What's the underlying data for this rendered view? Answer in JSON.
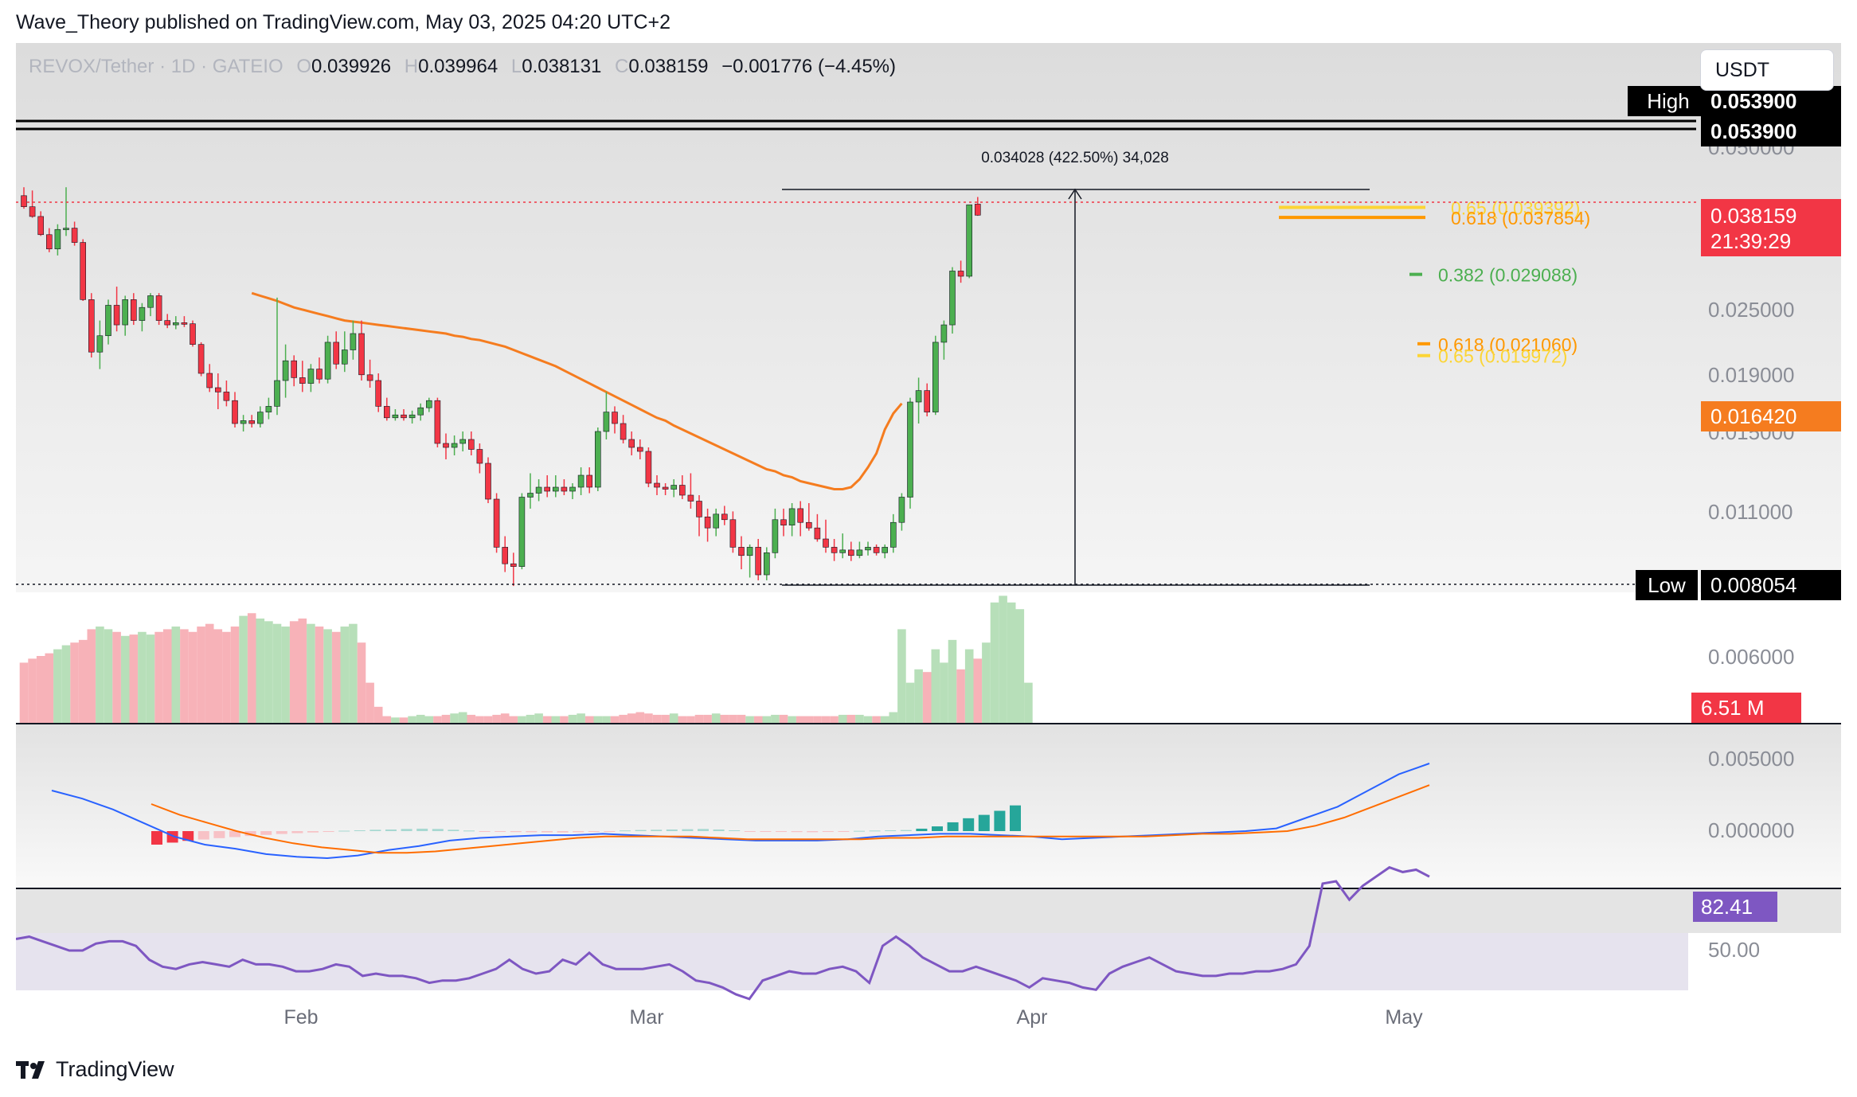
{
  "header": {
    "publisher_line": "Wave_Theory published on TradingView.com, May 03, 2025 04:20 UTC+2"
  },
  "legend": {
    "symbol": "REVOX/Tether · 1D · GATEIO",
    "open_label": "O",
    "open": "0.039926",
    "high_label": "H",
    "high": "0.039964",
    "low_label": "L",
    "low": "0.038131",
    "close_label": "C",
    "close": "0.038159",
    "change": "−0.001776 (−4.45%)"
  },
  "currency": {
    "label": "USDT"
  },
  "footer": {
    "brand": "TradingView"
  },
  "colors": {
    "up": "#4caf50",
    "down": "#f23645",
    "ema": "#f57c1f",
    "macd": "#2962ff",
    "signal": "#ff6d00",
    "rsi": "#7e57c2",
    "fib_gold": "#fcd535",
    "fib_orange": "#ff9800",
    "fib_green": "#4caf50"
  },
  "chart_data": {
    "type": "candlestick",
    "x_ticks": [
      "Feb",
      "Mar",
      "Apr",
      "May"
    ],
    "y_ticks": [
      "0.050000",
      "0.025000",
      "0.019000",
      "0.015000",
      "0.011000",
      "0.006000",
      "0.005000",
      "0.000000"
    ],
    "price_scale": {
      "high_label": "High",
      "high_value": "0.053900",
      "high_value_2": "0.053900",
      "low_label": "Low",
      "low_value": "0.008054",
      "last_price": "0.038159",
      "countdown": "21:39:29",
      "ema_value": "0.016420",
      "volume_value": "6.51 M",
      "rsi_value": "82.41",
      "rsi_tick": "50.00"
    },
    "measure_label": "0.034028 (422.50%) 34,028",
    "fib_levels": [
      {
        "label": "0.65 (0.039392)",
        "value": 0.039392,
        "color": "#fcd535"
      },
      {
        "label": "0.618 (0.037854)",
        "value": 0.037854,
        "color": "#ff9800"
      },
      {
        "label": "0.382 (0.029088)",
        "value": 0.029088,
        "color": "#4caf50"
      },
      {
        "label": "0.618 (0.021060)",
        "value": 0.02106,
        "color": "#ff9800"
      },
      {
        "label": "0.65 (0.019972)",
        "value": 0.019972,
        "color": "#fcd535"
      }
    ],
    "candles": [
      [
        0.0412,
        0.0425,
        0.0392,
        0.0395
      ],
      [
        0.0395,
        0.042,
        0.0378,
        0.038
      ],
      [
        0.038,
        0.0388,
        0.035,
        0.0352
      ],
      [
        0.0352,
        0.0362,
        0.0325,
        0.033
      ],
      [
        0.033,
        0.0368,
        0.032,
        0.036
      ],
      [
        0.036,
        0.0425,
        0.035,
        0.0362
      ],
      [
        0.0362,
        0.0372,
        0.0335,
        0.034
      ],
      [
        0.034,
        0.0345,
        0.025,
        0.0252
      ],
      [
        0.0252,
        0.0262,
        0.0198,
        0.0203
      ],
      [
        0.0203,
        0.0232,
        0.0188,
        0.0218
      ],
      [
        0.0218,
        0.0252,
        0.021,
        0.0246
      ],
      [
        0.0246,
        0.0272,
        0.0222,
        0.0228
      ],
      [
        0.0228,
        0.0258,
        0.0218,
        0.0252
      ],
      [
        0.0252,
        0.0262,
        0.0228,
        0.0232
      ],
      [
        0.0232,
        0.0248,
        0.0222,
        0.0244
      ],
      [
        0.0244,
        0.0262,
        0.0236,
        0.0258
      ],
      [
        0.0258,
        0.0262,
        0.0228,
        0.0232
      ],
      [
        0.0232,
        0.0238,
        0.0225,
        0.0228
      ],
      [
        0.0228,
        0.0236,
        0.0224,
        0.023
      ],
      [
        0.023,
        0.0236,
        0.0226,
        0.0229
      ],
      [
        0.0229,
        0.0232,
        0.0208,
        0.021
      ],
      [
        0.021,
        0.0212,
        0.0183,
        0.0185
      ],
      [
        0.0185,
        0.0192,
        0.0172,
        0.0175
      ],
      [
        0.0175,
        0.0185,
        0.016,
        0.0172
      ],
      [
        0.0172,
        0.018,
        0.0162,
        0.0166
      ],
      [
        0.0166,
        0.0172,
        0.0148,
        0.015
      ],
      [
        0.015,
        0.0156,
        0.0146,
        0.0152
      ],
      [
        0.0152,
        0.0156,
        0.0148,
        0.015
      ],
      [
        0.015,
        0.0162,
        0.0148,
        0.0158
      ],
      [
        0.0158,
        0.0168,
        0.0153,
        0.0162
      ],
      [
        0.0162,
        0.0255,
        0.0156,
        0.018
      ],
      [
        0.018,
        0.021,
        0.0168,
        0.0195
      ],
      [
        0.0195,
        0.02,
        0.0176,
        0.0182
      ],
      [
        0.0182,
        0.0195,
        0.0172,
        0.0178
      ],
      [
        0.0178,
        0.0192,
        0.0172,
        0.0188
      ],
      [
        0.0188,
        0.0198,
        0.0178,
        0.0181
      ],
      [
        0.0181,
        0.0218,
        0.0178,
        0.0212
      ],
      [
        0.0212,
        0.0222,
        0.0188,
        0.0192
      ],
      [
        0.0192,
        0.0222,
        0.0186,
        0.0205
      ],
      [
        0.0205,
        0.0232,
        0.0196,
        0.022
      ],
      [
        0.022,
        0.0232,
        0.018,
        0.0184
      ],
      [
        0.0184,
        0.0196,
        0.0175,
        0.018
      ],
      [
        0.018,
        0.0185,
        0.0158,
        0.0162
      ],
      [
        0.0162,
        0.0168,
        0.0152,
        0.0154
      ],
      [
        0.0154,
        0.016,
        0.0152,
        0.0156
      ],
      [
        0.0156,
        0.016,
        0.0152,
        0.0154
      ],
      [
        0.0154,
        0.0159,
        0.015,
        0.0156
      ],
      [
        0.0156,
        0.0164,
        0.0152,
        0.0161
      ],
      [
        0.0161,
        0.0168,
        0.0158,
        0.0166
      ],
      [
        0.0166,
        0.0168,
        0.0138,
        0.014
      ],
      [
        0.014,
        0.0145,
        0.0132,
        0.0138
      ],
      [
        0.0138,
        0.0144,
        0.0134,
        0.014
      ],
      [
        0.014,
        0.0146,
        0.0136,
        0.0142
      ],
      [
        0.0142,
        0.0146,
        0.0134,
        0.0137
      ],
      [
        0.0137,
        0.014,
        0.0125,
        0.013
      ],
      [
        0.013,
        0.0133,
        0.011,
        0.0112
      ],
      [
        0.0112,
        0.0115,
        0.0092,
        0.0094
      ],
      [
        0.0094,
        0.0098,
        0.0085,
        0.0088
      ],
      [
        0.0088,
        0.0092,
        0.008,
        0.0087
      ],
      [
        0.0087,
        0.0115,
        0.0086,
        0.0113
      ],
      [
        0.0113,
        0.0125,
        0.0108,
        0.0115
      ],
      [
        0.0115,
        0.0122,
        0.0111,
        0.0118
      ],
      [
        0.0118,
        0.0124,
        0.0113,
        0.0116
      ],
      [
        0.0116,
        0.0124,
        0.0113,
        0.0118
      ],
      [
        0.0118,
        0.0122,
        0.0114,
        0.0116
      ],
      [
        0.0116,
        0.012,
        0.0112,
        0.0118
      ],
      [
        0.0118,
        0.0128,
        0.0114,
        0.0124
      ],
      [
        0.0124,
        0.0128,
        0.0115,
        0.0118
      ],
      [
        0.0118,
        0.0148,
        0.0116,
        0.0146
      ],
      [
        0.0146,
        0.0172,
        0.0142,
        0.0158
      ],
      [
        0.0158,
        0.0162,
        0.0145,
        0.015
      ],
      [
        0.015,
        0.0156,
        0.014,
        0.0142
      ],
      [
        0.0142,
        0.0146,
        0.0134,
        0.0138
      ],
      [
        0.0138,
        0.0142,
        0.0132,
        0.0136
      ],
      [
        0.0136,
        0.0138,
        0.0118,
        0.012
      ],
      [
        0.012,
        0.0124,
        0.0114,
        0.0118
      ],
      [
        0.0118,
        0.012,
        0.0114,
        0.0117
      ],
      [
        0.0117,
        0.0122,
        0.0113,
        0.0119
      ],
      [
        0.0119,
        0.0124,
        0.0112,
        0.0114
      ],
      [
        0.0114,
        0.0125,
        0.0108,
        0.0111
      ],
      [
        0.0111,
        0.0114,
        0.0098,
        0.0105
      ],
      [
        0.0105,
        0.0108,
        0.0096,
        0.0101
      ],
      [
        0.0101,
        0.0108,
        0.0098,
        0.0106
      ],
      [
        0.0106,
        0.0109,
        0.0102,
        0.0104
      ],
      [
        0.0104,
        0.0107,
        0.0092,
        0.0094
      ],
      [
        0.0094,
        0.0098,
        0.0086,
        0.0091
      ],
      [
        0.0091,
        0.0095,
        0.0083,
        0.0094
      ],
      [
        0.0094,
        0.0097,
        0.0082,
        0.0084
      ],
      [
        0.0084,
        0.0094,
        0.0082,
        0.0092
      ],
      [
        0.0092,
        0.0108,
        0.009,
        0.0104
      ],
      [
        0.0104,
        0.0108,
        0.0098,
        0.0102
      ],
      [
        0.0102,
        0.011,
        0.0098,
        0.0108
      ],
      [
        0.0108,
        0.0111,
        0.0098,
        0.0103
      ],
      [
        0.0103,
        0.011,
        0.01,
        0.0101
      ],
      [
        0.0101,
        0.0106,
        0.0096,
        0.0097
      ],
      [
        0.0097,
        0.0104,
        0.0092,
        0.0094
      ],
      [
        0.0094,
        0.0097,
        0.0089,
        0.0092
      ],
      [
        0.0092,
        0.0099,
        0.009,
        0.0093
      ],
      [
        0.0093,
        0.0096,
        0.0089,
        0.0091
      ],
      [
        0.0091,
        0.0096,
        0.009,
        0.0093
      ],
      [
        0.0093,
        0.0096,
        0.0091,
        0.0094
      ],
      [
        0.0094,
        0.0095,
        0.0091,
        0.0092
      ],
      [
        0.0092,
        0.0095,
        0.009,
        0.0094
      ],
      [
        0.0094,
        0.0106,
        0.0092,
        0.0103
      ],
      [
        0.0103,
        0.0115,
        0.01,
        0.0113
      ],
      [
        0.0113,
        0.0168,
        0.0108,
        0.0165
      ],
      [
        0.0165,
        0.0182,
        0.015,
        0.0173
      ],
      [
        0.0173,
        0.0178,
        0.0155,
        0.0158
      ],
      [
        0.0158,
        0.0218,
        0.0156,
        0.0212
      ],
      [
        0.0212,
        0.0232,
        0.0196,
        0.0228
      ],
      [
        0.0228,
        0.0302,
        0.022,
        0.0296
      ],
      [
        0.0296,
        0.0312,
        0.0278,
        0.0288
      ],
      [
        0.0288,
        0.0398,
        0.0285,
        0.0398
      ],
      [
        0.0399,
        0.041,
        0.0381,
        0.0382
      ]
    ],
    "ema": [
      0.0262,
      0.0258,
      0.0254,
      0.025,
      0.0247,
      0.0244,
      0.0242,
      0.024,
      0.0238,
      0.0236,
      0.0234,
      0.0232,
      0.0231,
      0.023,
      0.0229,
      0.0228,
      0.0227,
      0.0226,
      0.0225,
      0.0224,
      0.0223,
      0.0222,
      0.0221,
      0.022,
      0.0218,
      0.0217,
      0.0215,
      0.0214,
      0.0212,
      0.021,
      0.0208,
      0.0205,
      0.0202,
      0.0199,
      0.0196,
      0.0193,
      0.019,
      0.0187,
      0.0184,
      0.0181,
      0.0178,
      0.0175,
      0.0172,
      0.0169,
      0.0166,
      0.0163,
      0.016,
      0.0157,
      0.0154,
      0.0152,
      0.0149,
      0.0147,
      0.0145,
      0.0143,
      0.0141,
      0.0139,
      0.0137,
      0.0135,
      0.0133,
      0.0131,
      0.0129,
      0.0127,
      0.0126,
      0.0124,
      0.0123,
      0.0121,
      0.012,
      0.0119,
      0.0118,
      0.0117,
      0.0117,
      0.0118,
      0.0122,
      0.0128,
      0.0135,
      0.0147,
      0.0157,
      0.0164
    ],
    "volume": [
      0.45,
      0.48,
      0.5,
      0.52,
      0.55,
      0.58,
      0.6,
      0.62,
      0.7,
      0.72,
      0.7,
      0.68,
      0.65,
      0.66,
      0.68,
      0.66,
      0.68,
      0.7,
      0.72,
      0.7,
      0.68,
      0.72,
      0.74,
      0.7,
      0.68,
      0.72,
      0.8,
      0.82,
      0.78,
      0.76,
      0.74,
      0.72,
      0.76,
      0.78,
      0.74,
      0.72,
      0.7,
      0.68,
      0.72,
      0.74,
      0.6,
      0.3,
      0.12,
      0.05,
      0.04,
      0.04,
      0.05,
      0.06,
      0.05,
      0.05,
      0.06,
      0.07,
      0.08,
      0.06,
      0.05,
      0.05,
      0.06,
      0.07,
      0.05,
      0.05,
      0.06,
      0.07,
      0.05,
      0.05,
      0.05,
      0.06,
      0.07,
      0.05,
      0.05,
      0.05,
      0.05,
      0.06,
      0.07,
      0.08,
      0.07,
      0.06,
      0.06,
      0.07,
      0.05,
      0.05,
      0.06,
      0.06,
      0.07,
      0.06,
      0.06,
      0.06,
      0.05,
      0.05,
      0.05,
      0.06,
      0.06,
      0.05,
      0.05,
      0.05,
      0.05,
      0.05,
      0.05,
      0.06,
      0.06,
      0.06,
      0.05,
      0.05,
      0.05,
      0.08,
      0.7,
      0.3,
      0.4,
      0.38,
      0.55,
      0.45,
      0.62,
      0.4,
      0.55,
      0.48,
      0.6,
      0.9,
      0.95,
      0.9,
      0.85,
      0.3
    ],
    "macd": {
      "histogram": [
        -0.001,
        -0.00085,
        -0.00072,
        -0.00062,
        -0.00052,
        -0.00044,
        -0.00036,
        -0.00028,
        -0.00021,
        -0.00015,
        -0.0001,
        -6e-05,
        3e-05,
        6e-05,
        0.0001,
        0.00012,
        0.00016,
        0.00018,
        0.00016,
        0.0001,
        4e-05,
        -2e-05,
        -5e-05,
        -7e-05,
        -8e-05,
        -9e-05,
        -0.0001,
        -8e-05,
        -6e-05,
        -3e-05,
        5e-05,
        8e-05,
        0.0001,
        0.00012,
        0.00014,
        0.00016,
        0.00012,
        6e-05,
        -2e-05,
        -4e-05,
        -6e-05,
        -7e-05,
        -8e-05,
        -6e-05,
        -3e-05,
        2e-05,
        4e-05,
        6e-05,
        8e-05,
        0.00018,
        0.00035,
        0.00065,
        0.00095,
        0.0012,
        0.0015,
        0.0019
      ],
      "macd_line": [
        0.003,
        0.0024,
        0.0016,
        0.0006,
        -0.0004,
        -0.001,
        -0.0013,
        -0.0017,
        -0.0019,
        -0.002,
        -0.0018,
        -0.0014,
        -0.0011,
        -0.0007,
        -0.0005,
        -0.0004,
        -0.0003,
        -0.0003,
        -0.0002,
        -0.0003,
        -0.0004,
        -0.0005,
        -0.0006,
        -0.0007,
        -0.0007,
        -0.0007,
        -0.0006,
        -0.0004,
        -0.0003,
        -0.0002,
        -0.0002,
        -0.0003,
        -0.0004,
        -0.0006,
        -0.0005,
        -0.0004,
        -0.0003,
        -0.0002,
        -0.0001,
        0.0,
        0.0002,
        0.001,
        0.0018,
        0.003,
        0.0042,
        0.005
      ],
      "signal_line": [
        0.002,
        0.0012,
        0.0006,
        0.0,
        -0.0005,
        -0.0009,
        -0.0012,
        -0.0014,
        -0.0016,
        -0.0016,
        -0.0015,
        -0.0013,
        -0.0011,
        -0.0009,
        -0.0007,
        -0.0005,
        -0.0004,
        -0.0004,
        -0.0004,
        -0.0004,
        -0.0005,
        -0.0006,
        -0.0006,
        -0.0006,
        -0.0006,
        -0.0006,
        -0.0005,
        -0.0005,
        -0.0004,
        -0.0004,
        -0.0004,
        -0.0004,
        -0.0004,
        -0.0004,
        -0.0004,
        -0.0004,
        -0.0003,
        -0.0002,
        -0.0002,
        -0.0001,
        0.0,
        0.0004,
        0.001,
        0.0018,
        0.0026,
        0.0034
      ]
    },
    "rsi": [
      55,
      56,
      54,
      52,
      50,
      50,
      53,
      54,
      54,
      52,
      46,
      43,
      42,
      44,
      45,
      44,
      43,
      46,
      44,
      44,
      43,
      41,
      41,
      42,
      44,
      43,
      39,
      40,
      39,
      39,
      38,
      36,
      37,
      37,
      38,
      40,
      42,
      46,
      42,
      40,
      41,
      46,
      44,
      49,
      44,
      42,
      42,
      42,
      43,
      44,
      41,
      37,
      36,
      34,
      31,
      29,
      37,
      39,
      41,
      40,
      40,
      42,
      43,
      41,
      36,
      52,
      56,
      52,
      47,
      44,
      41,
      41,
      43,
      41,
      39,
      37,
      34,
      38,
      37,
      36,
      34,
      33,
      40,
      43,
      45,
      47,
      44,
      41,
      40,
      39,
      39,
      40,
      40,
      41,
      41,
      42,
      44,
      52,
      79,
      80,
      72,
      78,
      82,
      86,
      84,
      85,
      82
    ]
  }
}
